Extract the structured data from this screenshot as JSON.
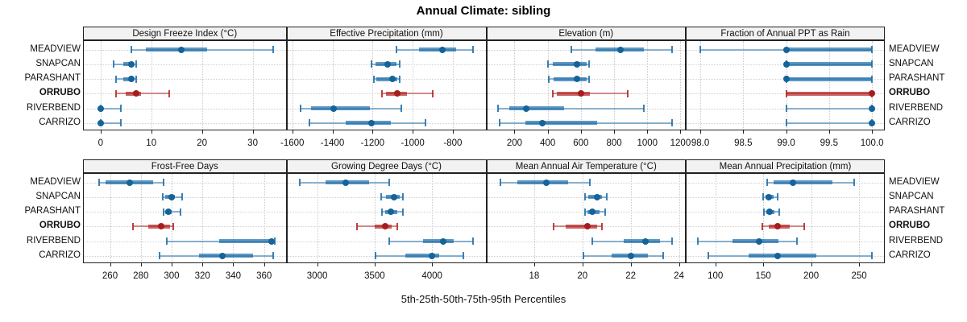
{
  "chart": {
    "title": "Annual Climate: sibling",
    "caption": "5th-25th-50th-75th-95th Percentiles"
  },
  "sites": [
    "MEADVIEW",
    "SNAPCAN",
    "PARASHANT",
    "ORRUBO",
    "RIVERBEND",
    "CARRIZO"
  ],
  "highlight_site": "ORRUBO",
  "colors": {
    "series_blue": "#1B6CA8",
    "series_blue_dot": "#15639B",
    "series_red": "#B22222",
    "series_red_dot": "#A51D1D",
    "strip_bg": "#F2F2F2",
    "panel_border": "#222222",
    "grid": "#C9C9C9"
  },
  "chart_data": {
    "type": "scatter",
    "subtype": "trellis-percentile-dotplot (2 rows x 4 columns, whisker = 5th-95th, thick bar = 25th-75th, dot = 50th)",
    "title": "Annual Climate: sibling",
    "caption": "5th-25th-50th-75th-95th Percentiles",
    "percentile_labels": [
      "5th",
      "25th",
      "50th",
      "75th",
      "95th"
    ],
    "rows_order": [
      "MEADVIEW",
      "SNAPCAN",
      "PARASHANT",
      "ORRUBO",
      "RIVERBEND",
      "CARRIZO"
    ],
    "highlight_row": "ORRUBO",
    "grid": "dotted vertical at ticks, dotted horizontal per row",
    "panels": [
      {
        "title": "Design Freeze Index (°C)",
        "tick_labels": [
          "0",
          "10",
          "20",
          "30"
        ],
        "tick_values": [
          0,
          10,
          20,
          30
        ],
        "xlim": [
          -3.3,
          36.5
        ],
        "values": {
          "MEADVIEW": [
            6,
            9,
            16,
            21,
            34
          ],
          "SNAPCAN": [
            2.5,
            4.5,
            6,
            6.5,
            7
          ],
          "PARASHANT": [
            3,
            4.5,
            6,
            6.5,
            7
          ],
          "ORRUBO": [
            3,
            5,
            7,
            8,
            13.5
          ],
          "RIVERBEND": [
            0,
            0,
            0,
            0.5,
            4
          ],
          "CARRIZO": [
            0,
            0,
            0,
            0.5,
            4
          ]
        }
      },
      {
        "title": "Effective Precipitation (mm)",
        "tick_labels": [
          "-1600",
          "-1400",
          "-1200",
          "-1000",
          "-800"
        ],
        "tick_values": [
          -1600,
          -1400,
          -1200,
          -1000,
          -800
        ],
        "xlim": [
          -1625,
          -637
        ],
        "values": {
          "MEADVIEW": [
            -1080,
            -970,
            -850,
            -785,
            -700
          ],
          "SNAPCAN": [
            -1205,
            -1185,
            -1125,
            -1080,
            -1065
          ],
          "PARASHANT": [
            -1195,
            -1180,
            -1100,
            -1075,
            -1065
          ],
          "ORRUBO": [
            -1155,
            -1135,
            -1075,
            -1030,
            -900
          ],
          "RIVERBEND": [
            -1560,
            -1505,
            -1395,
            -1215,
            -1055
          ],
          "CARRIZO": [
            -1515,
            -1335,
            -1205,
            -1110,
            -935
          ]
        }
      },
      {
        "title": "Elevation (m)",
        "tick_labels": [
          "200",
          "400",
          "600",
          "800",
          "1000",
          "1200"
        ],
        "tick_values": [
          200,
          400,
          600,
          800,
          1000,
          1200
        ],
        "xlim": [
          35,
          1227
        ],
        "values": {
          "MEADVIEW": [
            540,
            690,
            840,
            980,
            1150
          ],
          "SNAPCAN": [
            400,
            430,
            575,
            635,
            650
          ],
          "PARASHANT": [
            405,
            435,
            575,
            635,
            650
          ],
          "ORRUBO": [
            430,
            455,
            600,
            655,
            880
          ],
          "RIVERBEND": [
            100,
            170,
            270,
            500,
            980
          ],
          "CARRIZO": [
            110,
            265,
            370,
            700,
            1150
          ]
        }
      },
      {
        "title": "Fraction of Annual PPT as Rain",
        "tick_labels": [
          "98.0",
          "98.5",
          "99.0",
          "99.5",
          "100.0"
        ],
        "tick_values": [
          98.0,
          98.5,
          99.0,
          99.5,
          100.0
        ],
        "xlim": [
          97.84,
          100.14
        ],
        "values": {
          "MEADVIEW": [
            98.0,
            99.0,
            99.0,
            100.0,
            100.0
          ],
          "SNAPCAN": [
            99.0,
            99.0,
            99.0,
            100.0,
            100.0
          ],
          "PARASHANT": [
            99.0,
            99.0,
            99.0,
            100.0,
            100.0
          ],
          "ORRUBO": [
            99.0,
            99.0,
            100.0,
            100.0,
            100.0
          ],
          "RIVERBEND": [
            99.0,
            100.0,
            100.0,
            100.0,
            100.0
          ],
          "CARRIZO": [
            99.0,
            100.0,
            100.0,
            100.0,
            100.0
          ]
        }
      },
      {
        "title": "Frost-Free Days",
        "tick_labels": [
          "260",
          "280",
          "300",
          "320",
          "340",
          "360"
        ],
        "tick_values": [
          260,
          280,
          300,
          320,
          340,
          360
        ],
        "xlim": [
          243,
          374
        ],
        "values": {
          "MEADVIEW": [
            253,
            257,
            273,
            288,
            295
          ],
          "SNAPCAN": [
            294,
            296,
            300,
            302,
            307
          ],
          "PARASHANT": [
            295,
            296,
            298,
            300,
            306
          ],
          "ORRUBO": [
            275,
            285,
            293,
            299,
            301
          ],
          "RIVERBEND": [
            297,
            331,
            365,
            366,
            367
          ],
          "CARRIZO": [
            292,
            318,
            333,
            353,
            366
          ]
        }
      },
      {
        "title": "Growing Degree Days (°C)",
        "tick_labels": [
          "3000",
          "3500",
          "4000"
        ],
        "tick_values": [
          3000,
          3500,
          4000
        ],
        "xlim": [
          2740,
          4465
        ],
        "values": {
          "MEADVIEW": [
            2850,
            3070,
            3250,
            3450,
            3630
          ],
          "SNAPCAN": [
            3560,
            3600,
            3670,
            3715,
            3745
          ],
          "PARASHANT": [
            3565,
            3590,
            3640,
            3700,
            3745
          ],
          "ORRUBO": [
            3350,
            3500,
            3590,
            3650,
            3700
          ],
          "RIVERBEND": [
            3630,
            3920,
            4100,
            4185,
            4355
          ],
          "CARRIZO": [
            3505,
            3770,
            4000,
            4060,
            4270
          ]
        }
      },
      {
        "title": "Mean Annual Air Temperature (°C)",
        "tick_labels": [
          "18",
          "20",
          "22",
          "24"
        ],
        "tick_values": [
          18,
          20,
          22,
          24
        ],
        "xlim": [
          16.05,
          24.25
        ],
        "values": {
          "MEADVIEW": [
            16.6,
            17.3,
            18.5,
            19.4,
            20.3
          ],
          "SNAPCAN": [
            20.1,
            20.25,
            20.6,
            20.8,
            21.0
          ],
          "PARASHANT": [
            20.1,
            20.2,
            20.4,
            20.7,
            20.95
          ],
          "ORRUBO": [
            18.8,
            19.3,
            20.2,
            20.6,
            20.8
          ],
          "RIVERBEND": [
            20.4,
            21.7,
            22.6,
            23.2,
            23.7
          ],
          "CARRIZO": [
            20.05,
            21.2,
            22.0,
            22.7,
            23.35
          ]
        }
      },
      {
        "title": "Mean Annual Precipitation (mm)",
        "tick_labels": [
          "100",
          "150",
          "200",
          "250"
        ],
        "tick_values": [
          100,
          150,
          200,
          250
        ],
        "xlim": [
          70,
          276
        ],
        "values": {
          "MEADVIEW": [
            154,
            161,
            181,
            222,
            245
          ],
          "SNAPCAN": [
            150,
            152,
            156,
            161,
            165
          ],
          "PARASHANT": [
            151,
            153,
            157,
            162,
            167
          ],
          "ORRUBO": [
            149,
            156,
            165,
            178,
            193
          ],
          "RIVERBEND": [
            82,
            118,
            146,
            166,
            185
          ],
          "CARRIZO": [
            93,
            135,
            165,
            205,
            263
          ]
        }
      }
    ]
  }
}
